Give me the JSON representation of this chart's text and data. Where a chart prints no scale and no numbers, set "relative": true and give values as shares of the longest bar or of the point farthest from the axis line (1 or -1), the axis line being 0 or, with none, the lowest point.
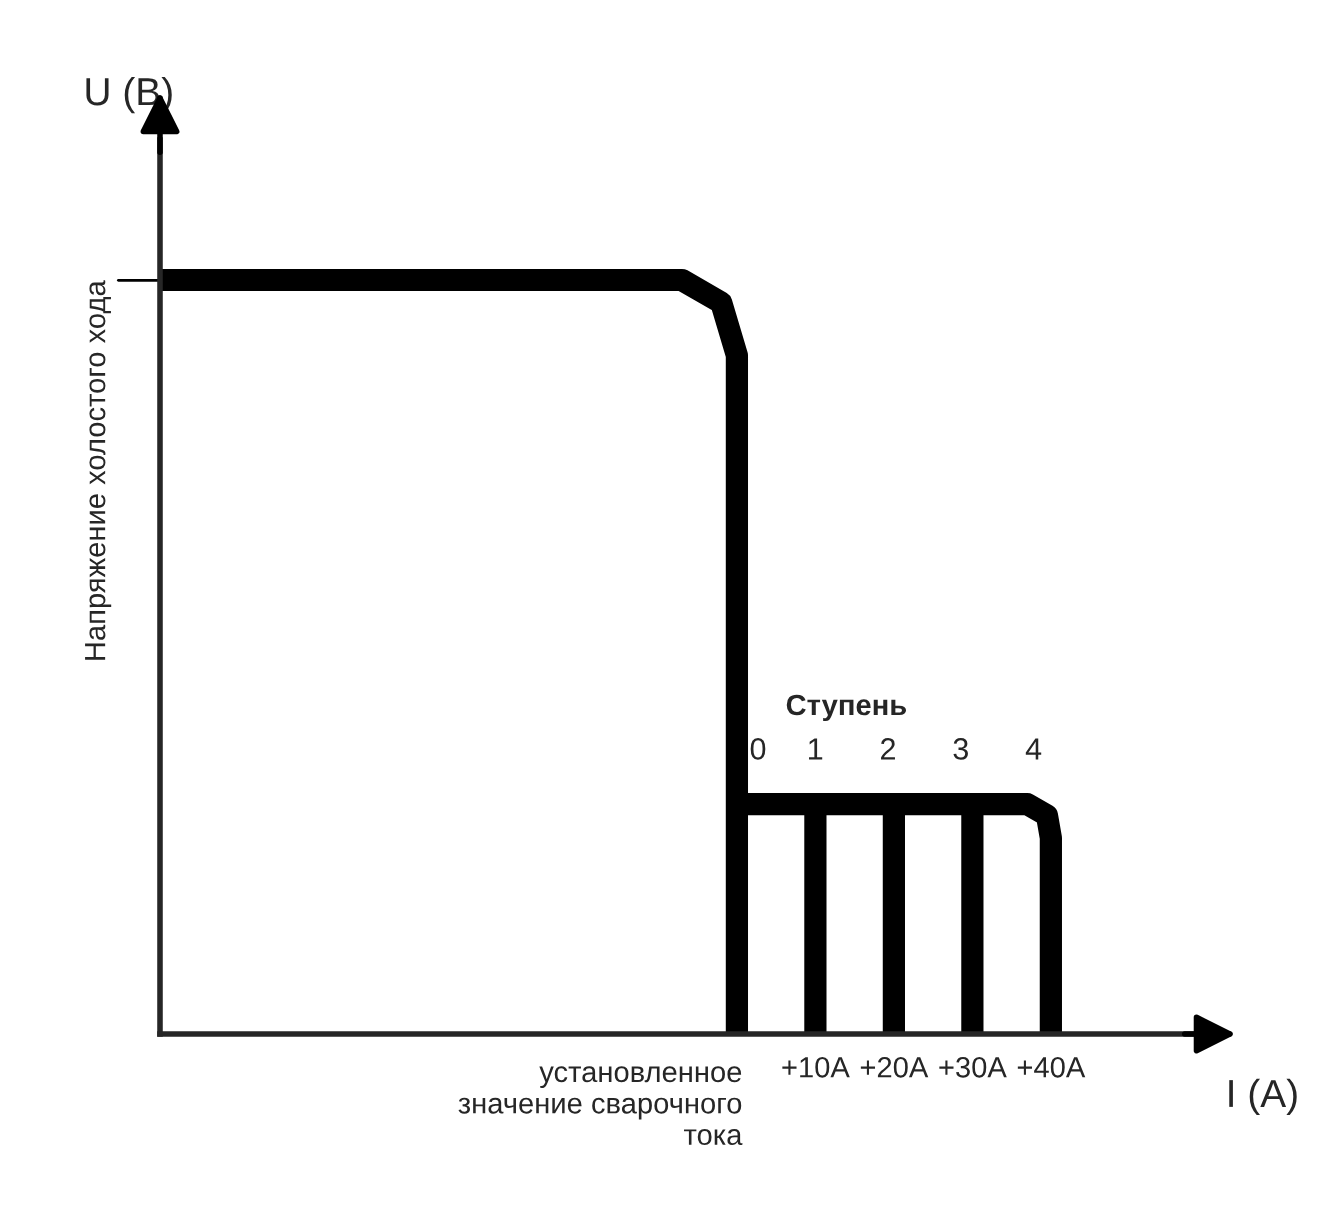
{
  "chart_data": {
    "type": "line",
    "relative": true,
    "xlabel": "I (A)",
    "ylabel": "U (B)",
    "xlim": [
      -73.5,
      59
    ],
    "xticks": [
      {
        "value": 0,
        "label": null
      },
      {
        "value": 10,
        "label": "+10A"
      },
      {
        "value": 20,
        "label": "+20A"
      },
      {
        "value": 30,
        "label": "+30A"
      },
      {
        "value": 40,
        "label": "+40A"
      }
    ],
    "series": [
      {
        "color": "#000000",
        "x": [
          -73.5,
          -7,
          -2,
          0,
          0
        ],
        "values": [
          1,
          1,
          0.97,
          0.9,
          0
        ]
      },
      {
        "color": "#000000",
        "x": [
          0,
          37,
          39.5,
          40,
          40
        ],
        "values": [
          0.305,
          0.305,
          0.29,
          0.26,
          0
        ]
      },
      {
        "color": "#000000",
        "x": [
          10,
          10
        ],
        "values": [
          0.305,
          0
        ]
      },
      {
        "color": "#000000",
        "x": [
          20,
          20
        ],
        "values": [
          0.305,
          0
        ]
      },
      {
        "color": "#000000",
        "x": [
          30,
          30
        ],
        "values": [
          0.305,
          0
        ]
      }
    ],
    "annotations": [
      "установленное\nзначение сварочного\nтока",
      "Напряжение холостого хода",
      "Ступень",
      "0",
      "1",
      "2",
      "3",
      "4"
    ],
    "grid": false,
    "line_style": "solid"
  }
}
